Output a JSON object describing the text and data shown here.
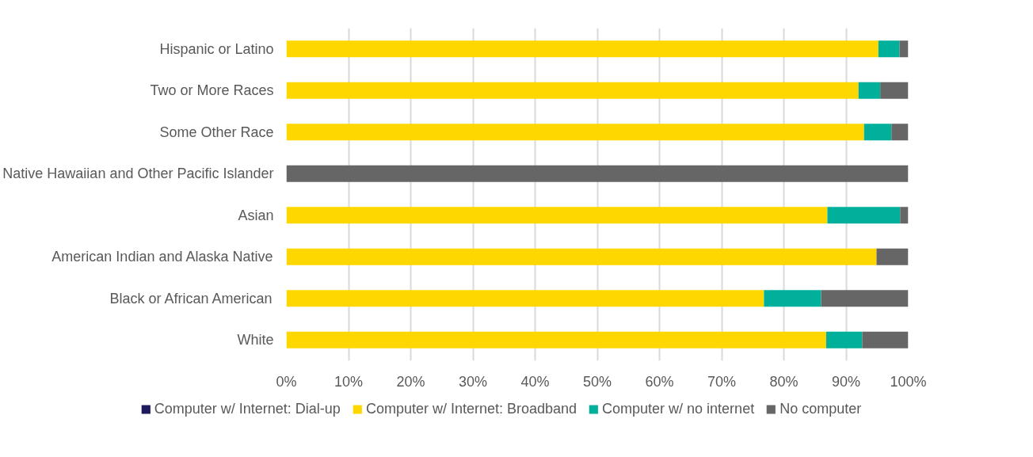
{
  "chart_data": {
    "type": "bar",
    "orientation": "horizontal",
    "stacked": true,
    "categories": [
      "Hispanic or Latino",
      "Two or More Races",
      "Some Other Race",
      "Native Hawaiian and Other Pacific Islander",
      "Asian",
      "American Indian and Alaska Native",
      "Black or African American",
      "White"
    ],
    "series": [
      {
        "name": "Computer w/ Internet: Dial-up",
        "color": "#1f1a5c",
        "values": [
          0,
          0,
          0,
          0,
          0,
          0,
          0,
          0
        ]
      },
      {
        "name": "Computer w/ Internet: Broadband",
        "color": "#ffd700",
        "values": [
          95.2,
          92.0,
          92.9,
          0,
          87.0,
          94.9,
          76.8,
          86.8
        ]
      },
      {
        "name": "Computer w/ no internet",
        "color": "#00b09b",
        "values": [
          3.4,
          3.5,
          4.4,
          0,
          11.7,
          0,
          9.2,
          5.8
        ]
      },
      {
        "name": "No computer",
        "color": "#666666",
        "values": [
          1.4,
          4.5,
          2.7,
          100,
          1.3,
          5.1,
          14.0,
          7.4
        ]
      }
    ],
    "xlim": [
      0,
      100
    ],
    "xticks": [
      {
        "value": 0,
        "label": "0%"
      },
      {
        "value": 10,
        "label": "10%"
      },
      {
        "value": 20,
        "label": "20%"
      },
      {
        "value": 30,
        "label": "30%"
      },
      {
        "value": 40,
        "label": "40%"
      },
      {
        "value": 50,
        "label": "50%"
      },
      {
        "value": 60,
        "label": "60%"
      },
      {
        "value": 70,
        "label": "70%"
      },
      {
        "value": 80,
        "label": "80%"
      },
      {
        "value": 90,
        "label": "90%"
      },
      {
        "value": 100,
        "label": "100%"
      }
    ],
    "grid": "x",
    "legend": "bottom"
  }
}
